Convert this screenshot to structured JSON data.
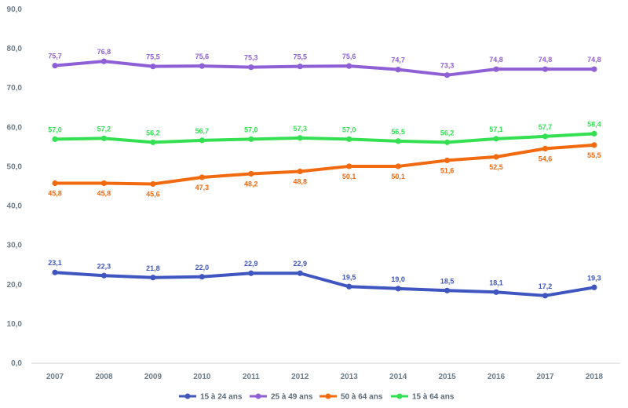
{
  "chart_data": {
    "type": "line",
    "categories": [
      "2007",
      "2008",
      "2009",
      "2010",
      "2011",
      "2012",
      "2013",
      "2014",
      "2015",
      "2016",
      "2017",
      "2018"
    ],
    "ylim": [
      0,
      90
    ],
    "y_ticks": [
      "0,0",
      "10,0",
      "20,0",
      "30,0",
      "40,0",
      "50,0",
      "60,0",
      "70,0",
      "80,0",
      "90,0"
    ],
    "grid": false,
    "legend_position": "bottom",
    "series": [
      {
        "name": "15 à 24 ans",
        "color": "#3f56c0",
        "values": [
          23.1,
          22.3,
          21.8,
          22.0,
          22.9,
          22.9,
          19.5,
          19.0,
          18.5,
          18.1,
          17.2,
          19.3
        ],
        "labels": [
          "23,1",
          "22,3",
          "21,8",
          "22,0",
          "22,9",
          "22,9",
          "19,5",
          "19,0",
          "18,5",
          "18,1",
          "17,2",
          "19,3"
        ]
      },
      {
        "name": "25 à 49 ans",
        "color": "#8f5fd6",
        "values": [
          75.7,
          76.8,
          75.5,
          75.6,
          75.3,
          75.5,
          75.6,
          74.7,
          73.3,
          74.8,
          74.8,
          74.8
        ],
        "labels": [
          "75,7",
          "76,8",
          "75,5",
          "75,6",
          "75,3",
          "75,5",
          "75,6",
          "74,7",
          "73,3",
          "74,8",
          "74,8",
          "74,8"
        ]
      },
      {
        "name": "50 à 64 ans",
        "color": "#f26a10",
        "values": [
          45.8,
          45.8,
          45.6,
          47.3,
          48.2,
          48.8,
          50.1,
          50.1,
          51.6,
          52.5,
          54.6,
          55.5
        ],
        "labels": [
          "45,8",
          "45,8",
          "45,6",
          "47,3",
          "48,2",
          "48,8",
          "50,1",
          "50,1",
          "51,6",
          "52,5",
          "54,6",
          "55,5"
        ]
      },
      {
        "name": "15 à 64 ans",
        "color": "#33e052",
        "values": [
          57.0,
          57.2,
          56.2,
          56.7,
          57.0,
          57.3,
          57.0,
          56.5,
          56.2,
          57.1,
          57.7,
          58.4
        ],
        "labels": [
          "57,0",
          "57,2",
          "56,2",
          "56,7",
          "57,0",
          "57,3",
          "57,0",
          "56,5",
          "56,2",
          "57,1",
          "57,7",
          "58,4"
        ]
      }
    ]
  }
}
